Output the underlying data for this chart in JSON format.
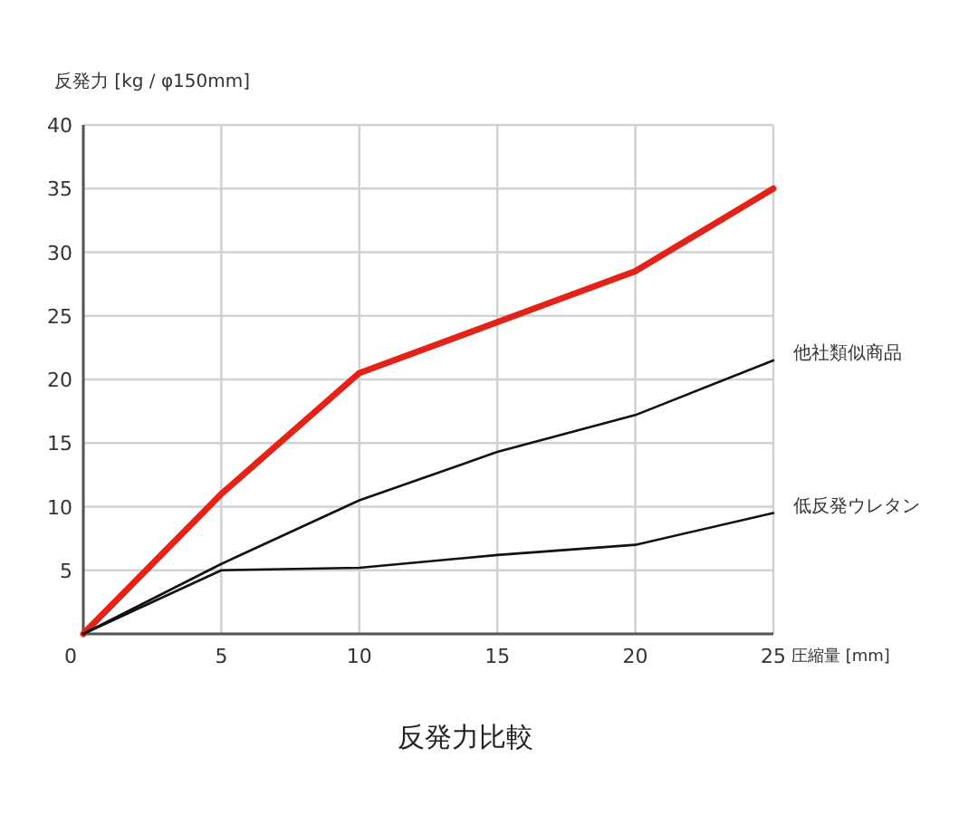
{
  "chart_data": {
    "type": "line",
    "title": "反発力比較",
    "xlabel": "圧縮量 [mm]",
    "ylabel": "反発力 [kg / φ150mm]",
    "x": [
      0,
      5,
      10,
      15,
      20,
      25
    ],
    "xlim": [
      0,
      25
    ],
    "xticks": [
      0,
      5,
      10,
      15,
      20,
      25
    ],
    "ylim": [
      0,
      40
    ],
    "yticks": [
      {
        "value": 0,
        "label": null
      },
      5,
      10,
      15,
      20,
      25,
      30,
      35,
      40
    ],
    "grid": true,
    "marker": "none",
    "line_style": "solid",
    "series": [
      {
        "color": "#e2231a",
        "values": [
          0,
          11,
          20.5,
          24.5,
          28.5,
          35
        ]
      },
      {
        "name": "他社類似商品",
        "color": "#111111",
        "values": [
          0,
          5.5,
          10.5,
          14.3,
          17.2,
          21.5
        ]
      },
      {
        "name": "低反発ウレタン",
        "color": "#111111",
        "values": [
          0,
          5,
          5.2,
          6.2,
          7,
          9.5
        ]
      }
    ]
  }
}
